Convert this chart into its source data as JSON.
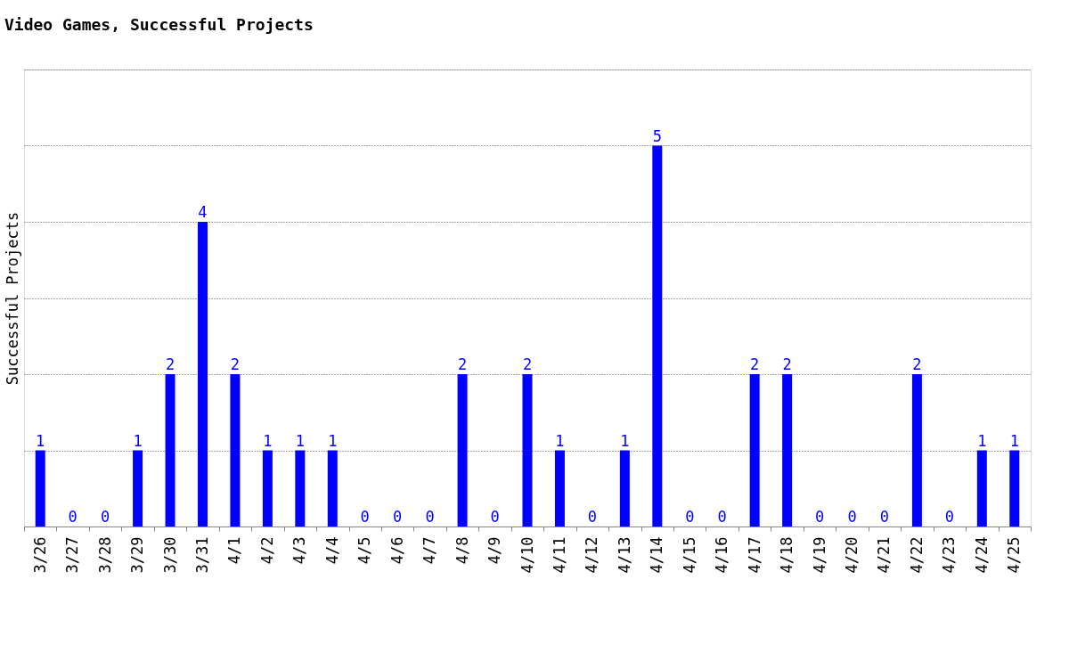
{
  "chart_data": {
    "type": "bar",
    "title": "Video Games, Successful Projects",
    "ylabel": "Successful Projects",
    "categories": [
      "3/26",
      "3/27",
      "3/28",
      "3/29",
      "3/30",
      "3/31",
      "4/1",
      "4/2",
      "4/3",
      "4/4",
      "4/5",
      "4/6",
      "4/7",
      "4/8",
      "4/9",
      "4/10",
      "4/11",
      "4/12",
      "4/13",
      "4/14",
      "4/15",
      "4/16",
      "4/17",
      "4/18",
      "4/19",
      "4/20",
      "4/21",
      "4/22",
      "4/23",
      "4/24",
      "4/25"
    ],
    "values": [
      1,
      0,
      0,
      1,
      2,
      4,
      2,
      1,
      1,
      1,
      0,
      0,
      0,
      2,
      0,
      2,
      1,
      0,
      1,
      5,
      0,
      0,
      2,
      2,
      0,
      0,
      0,
      2,
      0,
      1,
      1
    ],
    "color": "#0000ff",
    "data_labels": true,
    "ylim": [
      0,
      6
    ],
    "yticks": [
      {
        "value": 0,
        "label": null
      },
      {
        "value": 1,
        "label": null
      },
      {
        "value": 2,
        "label": null
      },
      {
        "value": 3,
        "label": null
      },
      {
        "value": 4,
        "label": null
      },
      {
        "value": 5,
        "label": null
      },
      {
        "value": 6,
        "label": null
      }
    ],
    "tick_labels": "x",
    "grid": "y"
  }
}
